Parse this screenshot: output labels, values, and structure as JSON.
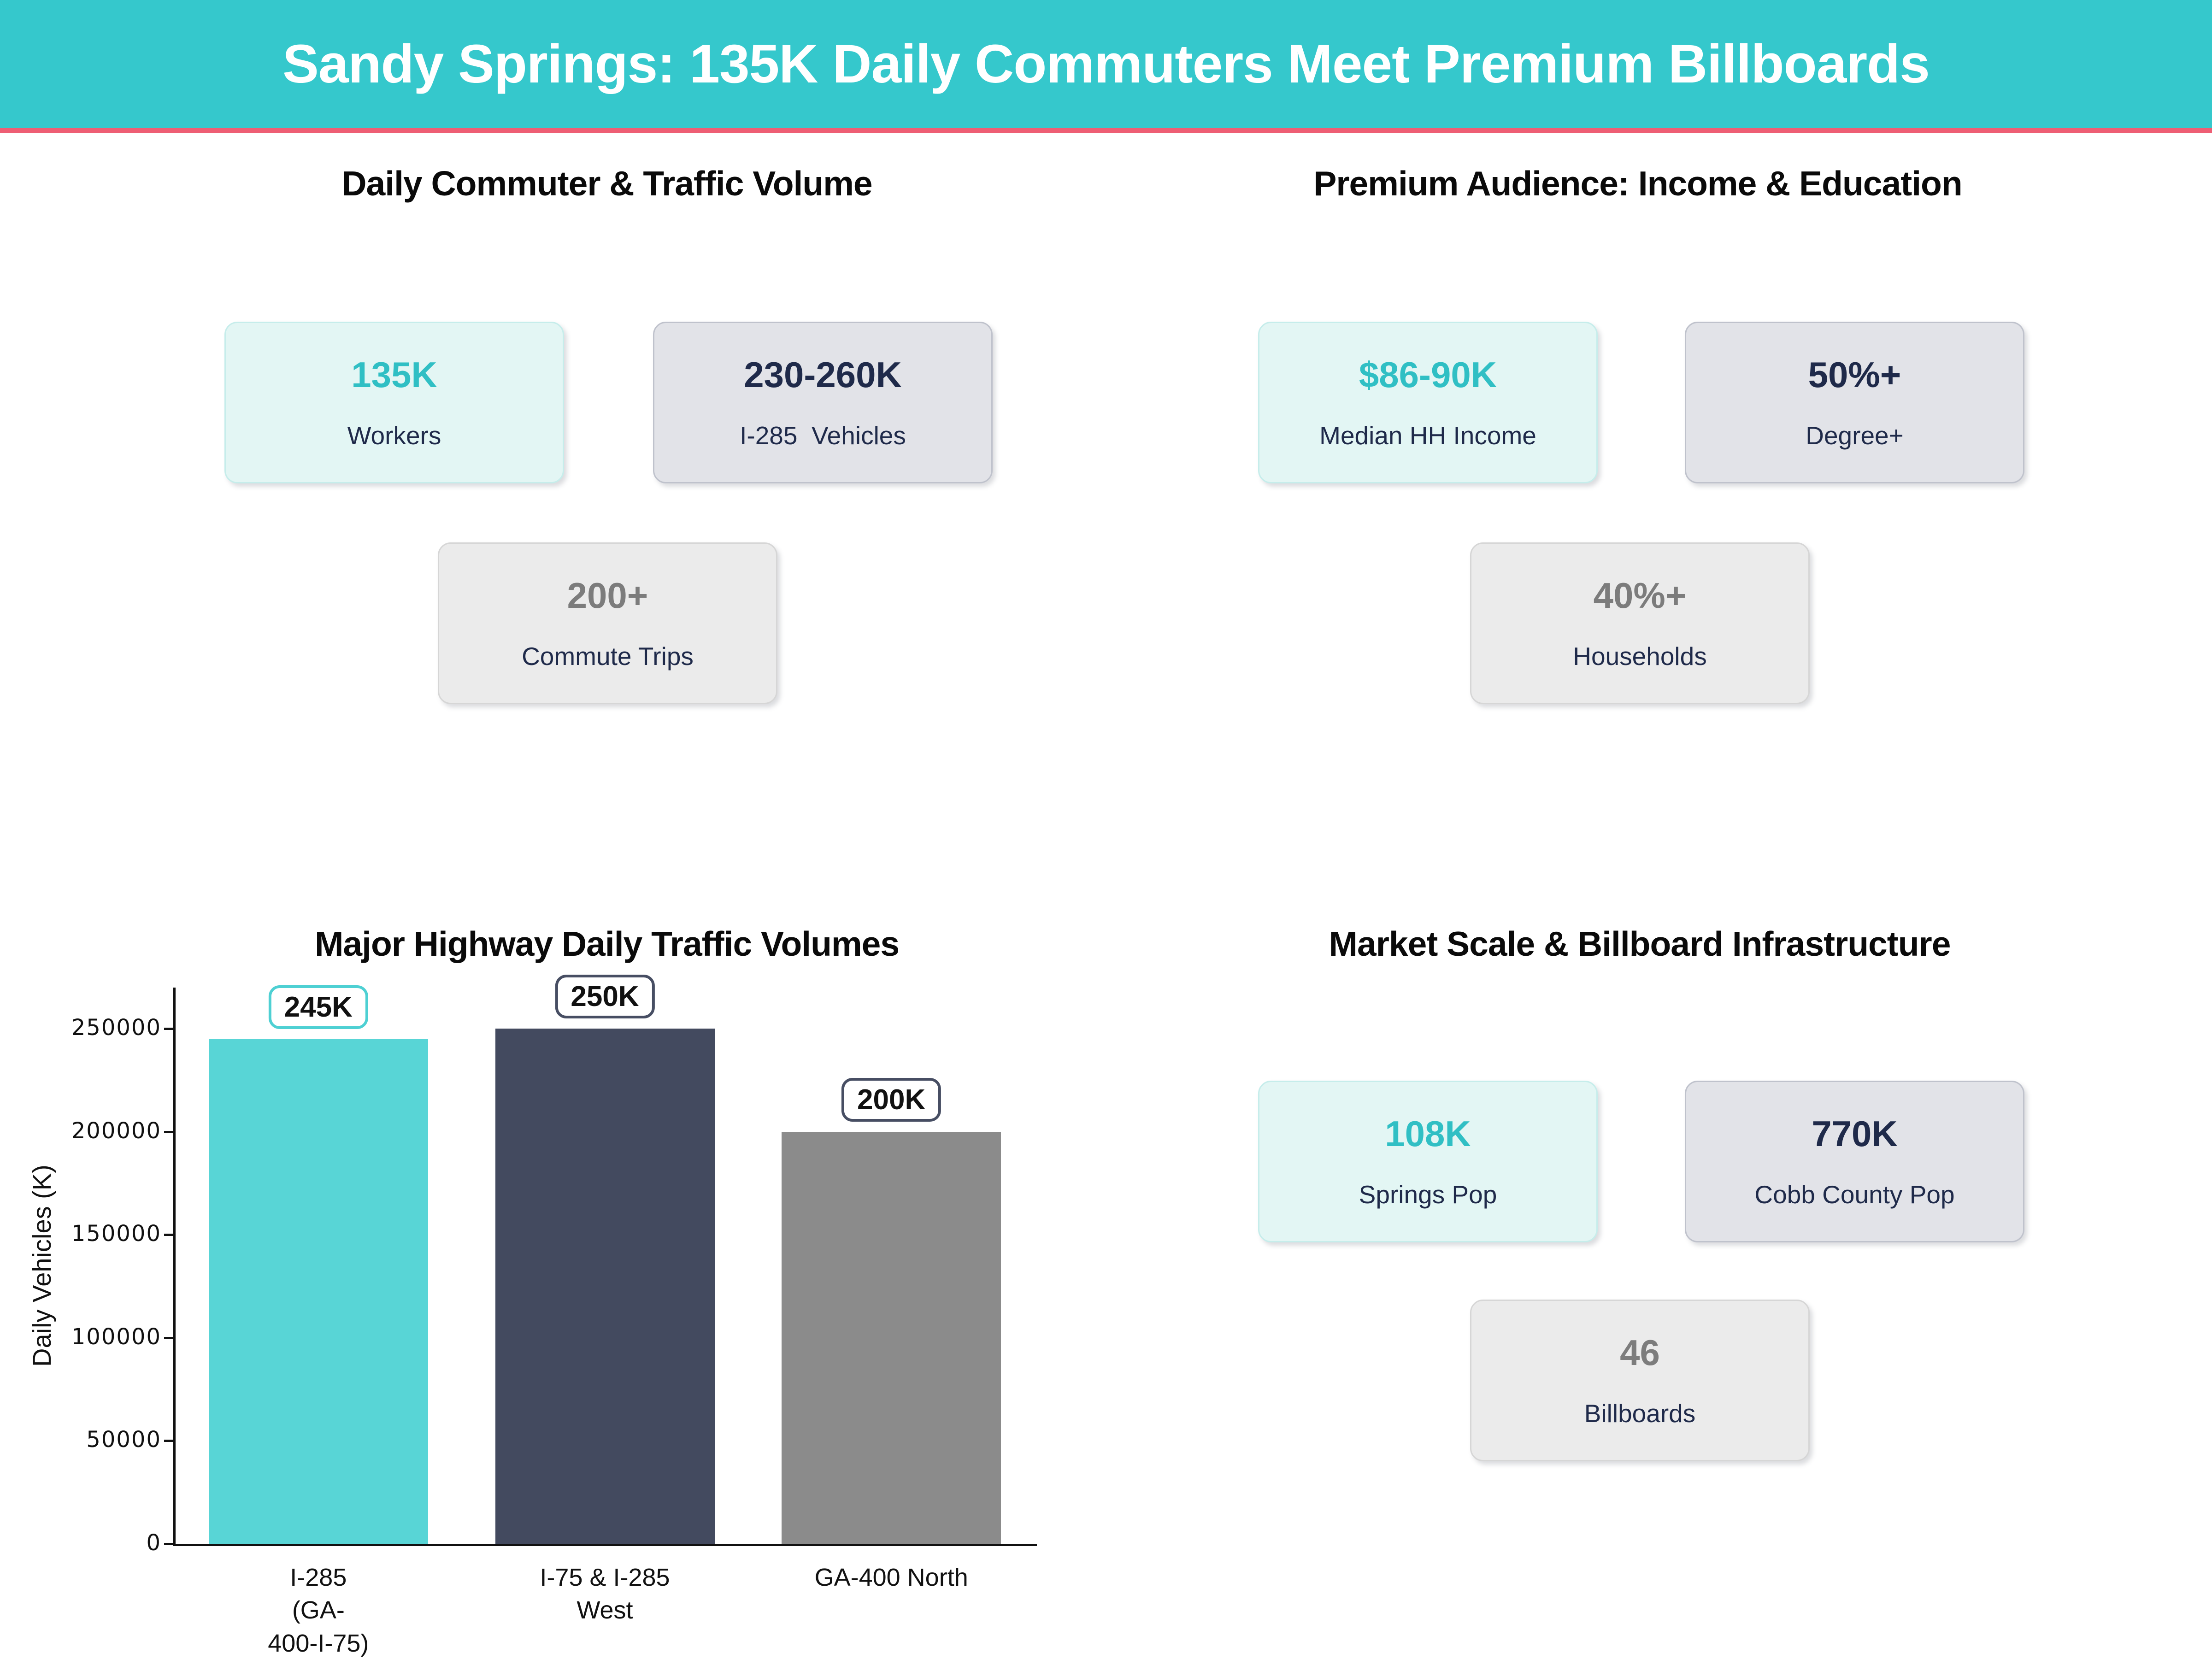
{
  "header": {
    "title": "Sandy Springs: 135K Daily Commuters Meet Premium Billboards"
  },
  "colors": {
    "header_bg": "#35c8cc",
    "accent_strip": "#ee5e74",
    "teal_text": "#30bfc4",
    "navy_text": "#1f2a4a",
    "gray_text": "#7c7c7c"
  },
  "sections": {
    "commuter": {
      "title": "Daily Commuter & Traffic Volume",
      "cards": [
        {
          "value": "135K",
          "label": "Workers",
          "style": "mint"
        },
        {
          "value": "230-260K",
          "label": "I-285  Vehicles",
          "style": "lavender"
        },
        {
          "value": "200+",
          "label": "Commute Trips",
          "style": "gray"
        }
      ]
    },
    "audience": {
      "title": "Premium Audience: Income & Education",
      "cards": [
        {
          "value": "$86-90K",
          "label": "Median HH Income",
          "style": "mint"
        },
        {
          "value": "50%+",
          "label": "Degree+",
          "style": "lavender"
        },
        {
          "value": "40%+",
          "label": "Households",
          "style": "gray"
        }
      ]
    },
    "market": {
      "title": "Market Scale & Billboard Infrastructure",
      "cards": [
        {
          "value": "108K",
          "label": "Springs Pop",
          "style": "mint"
        },
        {
          "value": "770K",
          "label": "Cobb County Pop",
          "style": "lavender"
        },
        {
          "value": "46",
          "label": "Billboards",
          "style": "gray"
        }
      ]
    }
  },
  "chart_data": {
    "type": "bar",
    "title": "Major Highway Daily Traffic Volumes",
    "categories": [
      "I-285\n(GA-\n400-I-75)",
      "I-75 & I-285\nWest",
      "GA-400 North"
    ],
    "values": [
      245000,
      250000,
      200000
    ],
    "value_labels": [
      "245K",
      "250K",
      "200K"
    ],
    "bar_colors": [
      "#58d5d6",
      "#434a5f",
      "#8b8b8b"
    ],
    "label_border_colors": [
      "#4ed0d3",
      "#474e63",
      "#474e63"
    ],
    "xlabel": "",
    "ylabel": "Daily Vehicles (K)",
    "ylim": [
      0,
      270000
    ],
    "yticks": [
      0,
      50000,
      100000,
      150000,
      200000,
      250000
    ],
    "grid": false,
    "legend": null
  }
}
